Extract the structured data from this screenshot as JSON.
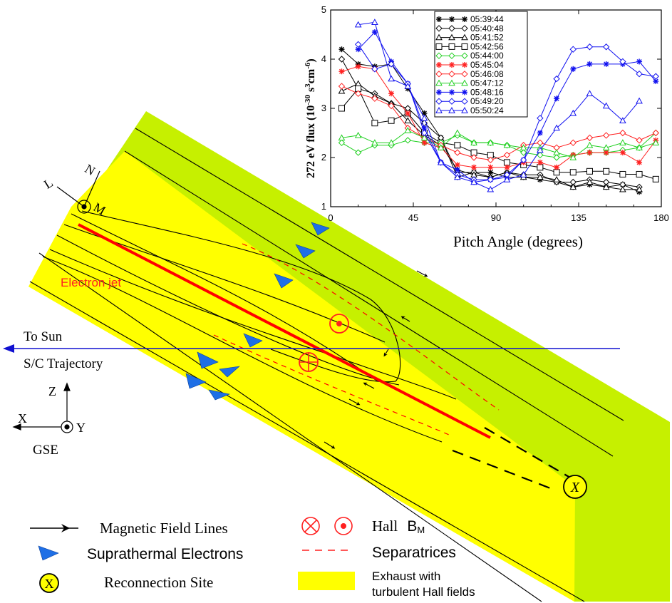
{
  "diagram": {
    "electron_jet_label": "Electron jet",
    "to_sun_label": "To Sun",
    "trajectory_label": "S/C Trajectory",
    "lmn_axes": {
      "l": "L",
      "n": "N",
      "m": "M"
    },
    "gse_axes": {
      "z": "Z",
      "x": "X",
      "y": "Y",
      "frame": "GSE"
    },
    "reconnection_symbol": "X",
    "colors": {
      "outer_region": "#c6f000",
      "exhaust": "#ffff00",
      "electron_jet": "#ff0000",
      "separatrix": "#ff0000",
      "electron_arrow": "#1e6fe6",
      "trajectory": "#1010d0",
      "field_line": "#000000"
    }
  },
  "legend": {
    "field_lines": "Magnetic Field Lines",
    "electrons": "Suprathermal Electrons",
    "reconnection": "Reconnection  Site",
    "hall_prefix": "Hall ",
    "hall_b": "B",
    "hall_sub": "M",
    "separatrices": "Separatrices",
    "exhaust_line1": "Exhaust with",
    "exhaust_line2": "turbulent Hall fields",
    "reconnection_symbol": "X"
  },
  "chart_data": {
    "type": "line",
    "xlabel": "Pitch Angle (degrees)",
    "ylabel_main": "272 eV flux (10",
    "ylabel_exp1": "-30",
    "ylabel_mid": " s",
    "ylabel_exp2": "3",
    "ylabel_mid2": "cm",
    "ylabel_exp3": "-6",
    "ylabel_end": ")",
    "xlim": [
      0,
      180
    ],
    "ylim": [
      1,
      5
    ],
    "xticks": [
      "0",
      "45",
      "90",
      "135",
      "180"
    ],
    "yticks": [
      "1",
      "2",
      "3",
      "4",
      "5"
    ],
    "legend_position": "top-center",
    "x": [
      6,
      15,
      24,
      33,
      42,
      51,
      60,
      69,
      78,
      87,
      96,
      105,
      114,
      123,
      132,
      141,
      150,
      159,
      168,
      177
    ],
    "series": [
      {
        "name": "05:39:44",
        "color": "#000000",
        "marker": "star",
        "values": [
          4.2,
          3.9,
          3.85,
          3.9,
          3.4,
          2.9,
          2.4,
          1.6,
          1.7,
          1.7,
          1.6,
          1.6,
          1.55,
          1.5,
          1.4,
          1.45,
          1.4,
          1.45,
          1.3,
          null
        ]
      },
      {
        "name": "05:40:48",
        "color": "#000000",
        "marker": "diamond",
        "values": [
          4.0,
          3.4,
          3.3,
          3.1,
          3.0,
          2.7,
          2.4,
          1.7,
          1.7,
          1.6,
          1.7,
          1.65,
          1.65,
          1.5,
          1.5,
          1.55,
          1.5,
          1.45,
          1.4,
          null
        ]
      },
      {
        "name": "05:41:52",
        "color": "#000000",
        "marker": "triangle",
        "values": [
          3.35,
          3.5,
          3.25,
          3.1,
          2.75,
          2.45,
          2.25,
          1.75,
          1.65,
          1.6,
          1.7,
          1.6,
          1.6,
          1.55,
          1.4,
          1.5,
          1.4,
          1.35,
          1.35,
          null
        ]
      },
      {
        "name": "05:42:56",
        "color": "#000000",
        "marker": "square",
        "values": [
          3.0,
          3.4,
          2.7,
          2.75,
          2.9,
          2.5,
          2.3,
          2.25,
          2.1,
          2.05,
          1.9,
          1.85,
          1.8,
          1.7,
          1.7,
          1.72,
          1.72,
          1.66,
          1.66,
          1.56
        ]
      },
      {
        "name": "05:44:00",
        "color": "#20d020",
        "marker": "diamond",
        "values": [
          2.3,
          2.1,
          2.25,
          2.25,
          2.35,
          2.3,
          2.3,
          2.45,
          2.3,
          2.3,
          2.25,
          2.1,
          2.05,
          2.0,
          2.05,
          2.1,
          2.1,
          2.15,
          2.2,
          2.5
        ]
      },
      {
        "name": "05:45:04",
        "color": "#ff2020",
        "marker": "star",
        "values": [
          3.75,
          3.85,
          3.8,
          3.3,
          2.9,
          2.3,
          2.2,
          1.85,
          1.8,
          1.8,
          1.8,
          1.9,
          1.9,
          1.8,
          2.05,
          2.1,
          2.1,
          2.1,
          1.9,
          2.35
        ]
      },
      {
        "name": "05:46:08",
        "color": "#ff2020",
        "marker": "diamond",
        "values": [
          3.45,
          3.3,
          3.2,
          3.05,
          2.6,
          2.4,
          2.25,
          2.1,
          2.0,
          1.95,
          2.05,
          2.25,
          2.3,
          2.2,
          2.3,
          2.4,
          2.45,
          2.5,
          2.35,
          2.5
        ]
      },
      {
        "name": "05:47:12",
        "color": "#20d020",
        "marker": "triangle",
        "values": [
          2.4,
          2.45,
          2.3,
          2.3,
          2.55,
          2.4,
          2.2,
          2.5,
          2.3,
          2.3,
          2.25,
          2.2,
          2.2,
          2.1,
          2.0,
          2.25,
          2.2,
          2.3,
          2.2,
          2.3
        ]
      },
      {
        "name": "05:48:16",
        "color": "#1010f0",
        "marker": "star",
        "values": [
          null,
          4.2,
          4.55,
          3.95,
          3.5,
          2.6,
          1.9,
          1.75,
          1.5,
          1.55,
          1.6,
          1.95,
          2.5,
          3.2,
          3.8,
          3.9,
          3.9,
          3.9,
          3.95,
          3.55
        ]
      },
      {
        "name": "05:49:20",
        "color": "#1010f0",
        "marker": "diamond",
        "values": [
          null,
          4.3,
          3.8,
          3.9,
          3.5,
          2.5,
          1.9,
          1.65,
          1.55,
          1.55,
          1.65,
          1.95,
          2.8,
          3.6,
          4.2,
          4.25,
          4.25,
          3.95,
          3.7,
          3.65
        ]
      },
      {
        "name": "05:50:24",
        "color": "#1010f0",
        "marker": "triangle",
        "values": [
          null,
          4.7,
          4.75,
          3.6,
          3.45,
          2.8,
          1.9,
          1.6,
          1.5,
          1.35,
          1.55,
          1.65,
          2.15,
          2.6,
          2.9,
          3.3,
          3.05,
          2.75,
          3.15,
          null
        ]
      }
    ]
  }
}
